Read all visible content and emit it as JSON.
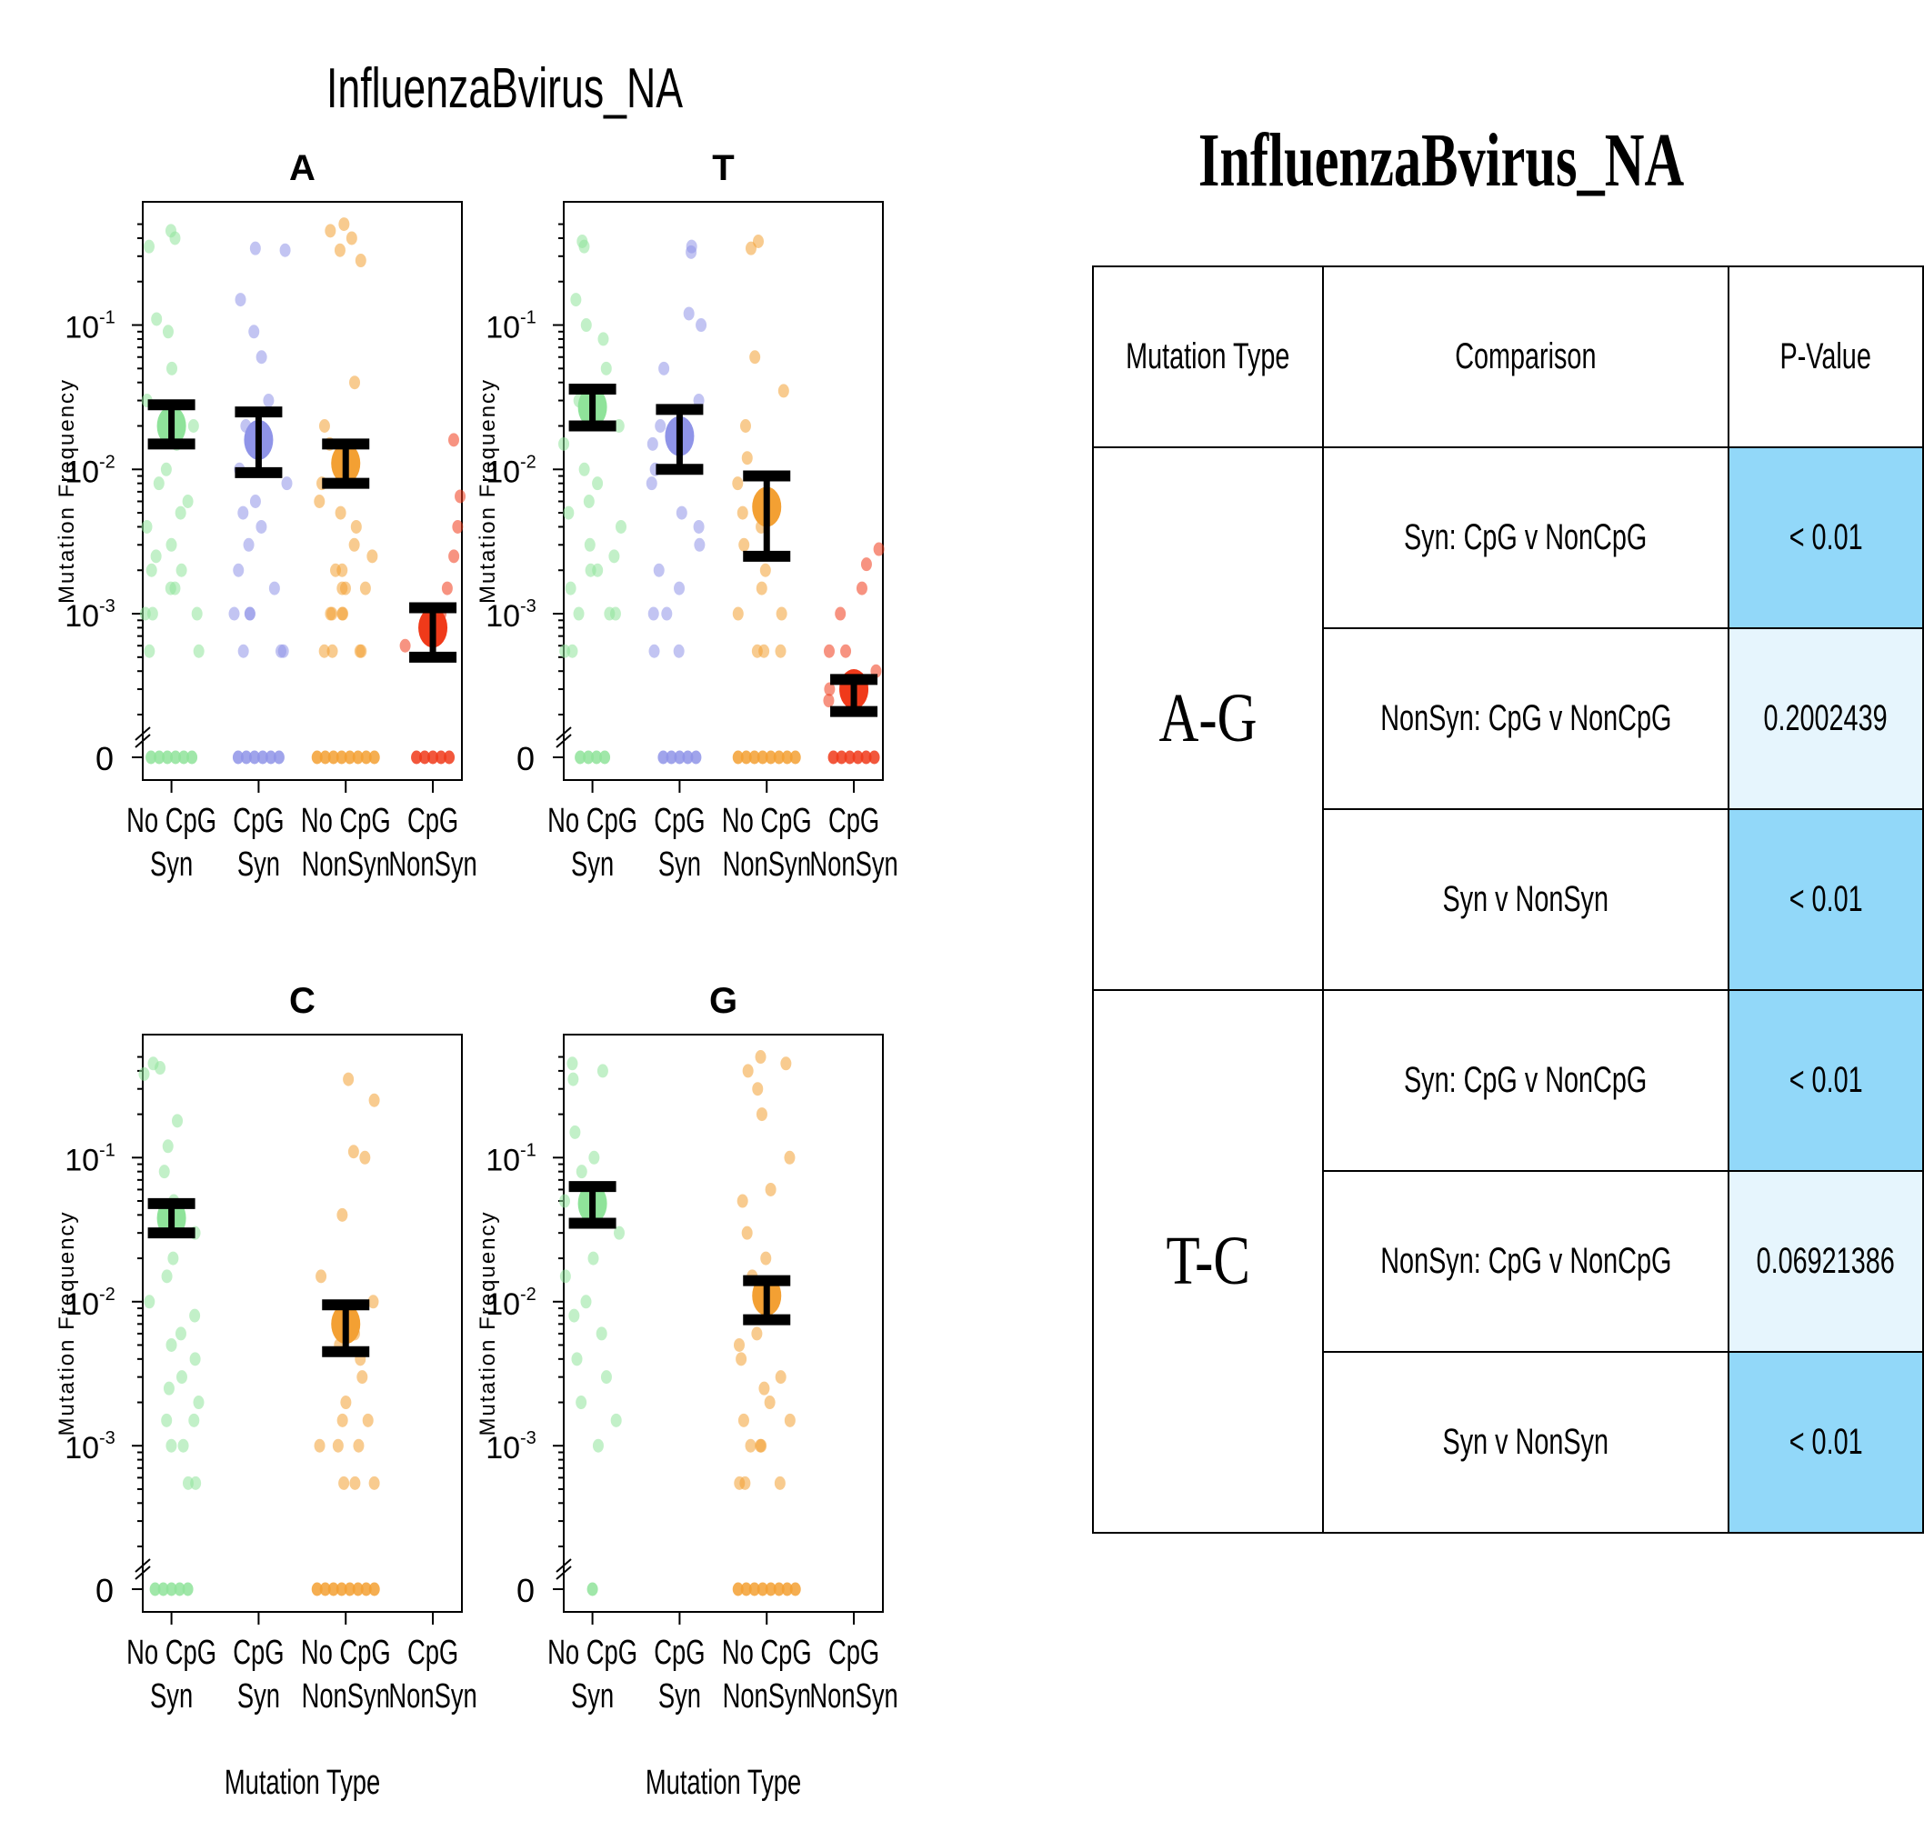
{
  "figure_title": "InfluenzaBvirus_NA",
  "table": {
    "title": "InfluenzaBvirus_NA",
    "headers": [
      "Mutation Type",
      "Comparison",
      "P-Value"
    ],
    "groups": [
      {
        "mutation_type": "A-G",
        "rows": [
          {
            "comparison": "Syn: CpG v NonCpG",
            "p_value": "< 0.01",
            "significant": true
          },
          {
            "comparison": "NonSyn: CpG v NonCpG",
            "p_value": "0.2002439",
            "significant": false
          },
          {
            "comparison": "Syn v NonSyn",
            "p_value": "< 0.01",
            "significant": true
          }
        ]
      },
      {
        "mutation_type": "T-C",
        "rows": [
          {
            "comparison": "Syn: CpG v NonCpG",
            "p_value": "< 0.01",
            "significant": true
          },
          {
            "comparison": "NonSyn: CpG v NonCpG",
            "p_value": "0.06921386",
            "significant": false
          },
          {
            "comparison": "Syn v NonSyn",
            "p_value": "< 0.01",
            "significant": true
          }
        ]
      }
    ],
    "colors": {
      "significant": "#92d8f9",
      "not_significant": "#e6f5fd"
    }
  },
  "chart_data": [
    {
      "type": "scatter",
      "title": "A",
      "ylabel": "Mutation Frequency",
      "xlabel": "",
      "y_scale": "log",
      "ylim": [
        0.0002,
        0.6
      ],
      "zero_tick": "0",
      "y_ticks": [
        "10^-3",
        "10^-2",
        "10^-1"
      ],
      "categories": [
        "No CpG\nSyn",
        "CpG\nSyn",
        "No CpG\nNonSyn",
        "CpG\nNonSyn"
      ],
      "series": [
        {
          "mean": 0.02,
          "ci": [
            0.015,
            0.028
          ],
          "points": [
            0.45,
            0.4,
            0.35,
            0.11,
            0.09,
            0.05,
            0.03,
            0.02,
            0.015,
            0.01,
            0.008,
            0.006,
            0.005,
            0.004,
            0.003,
            0.0025,
            0.002,
            0.002,
            0.0015,
            0.0015,
            0.001,
            0.001,
            0.001,
            0.00055,
            0.00055
          ],
          "zeros": 6
        },
        {
          "mean": 0.016,
          "ci": [
            0.0095,
            0.025
          ],
          "points": [
            0.34,
            0.33,
            0.15,
            0.09,
            0.06,
            0.03,
            0.02,
            0.01,
            0.008,
            0.006,
            0.005,
            0.004,
            0.003,
            0.002,
            0.0015,
            0.001,
            0.001,
            0.001,
            0.00055,
            0.00055,
            0.00055
          ],
          "zeros": 6
        },
        {
          "mean": 0.011,
          "ci": [
            0.008,
            0.015
          ],
          "points": [
            0.5,
            0.45,
            0.4,
            0.33,
            0.28,
            0.04,
            0.02,
            0.015,
            0.01,
            0.008,
            0.006,
            0.005,
            0.004,
            0.003,
            0.0025,
            0.002,
            0.002,
            0.0015,
            0.0015,
            0.0015,
            0.001,
            0.001,
            0.001,
            0.001,
            0.00055,
            0.00055,
            0.00055,
            0.00055
          ],
          "zeros": 8
        },
        {
          "mean": 0.0008,
          "ci": [
            0.0005,
            0.0011
          ],
          "points": [
            0.016,
            0.0065,
            0.004,
            0.0025,
            0.0015,
            0.001,
            0.0008,
            0.0006
          ],
          "zeros": 5
        }
      ],
      "colors": [
        "#8fe39a",
        "#8f94e8",
        "#f3a033",
        "#f03a1a"
      ]
    },
    {
      "type": "scatter",
      "title": "T",
      "ylabel": "Mutation Frequency",
      "xlabel": "",
      "y_scale": "log",
      "ylim": [
        0.0002,
        0.6
      ],
      "zero_tick": "0",
      "y_ticks": [
        "10^-3",
        "10^-2",
        "10^-1"
      ],
      "categories": [
        "No CpG\nSyn",
        "CpG\nSyn",
        "No CpG\nNonSyn",
        "CpG\nNonSyn"
      ],
      "series": [
        {
          "mean": 0.027,
          "ci": [
            0.02,
            0.036
          ],
          "points": [
            0.38,
            0.35,
            0.15,
            0.1,
            0.08,
            0.05,
            0.03,
            0.02,
            0.015,
            0.01,
            0.008,
            0.006,
            0.005,
            0.004,
            0.003,
            0.0025,
            0.002,
            0.002,
            0.0015,
            0.001,
            0.001,
            0.001,
            0.00055,
            0.00055
          ],
          "zeros": 4
        },
        {
          "mean": 0.017,
          "ci": [
            0.01,
            0.026
          ],
          "points": [
            0.35,
            0.32,
            0.12,
            0.1,
            0.05,
            0.03,
            0.02,
            0.015,
            0.01,
            0.008,
            0.005,
            0.004,
            0.003,
            0.002,
            0.0015,
            0.001,
            0.001,
            0.00055,
            0.00055
          ],
          "zeros": 5
        },
        {
          "mean": 0.0055,
          "ci": [
            0.0025,
            0.009
          ],
          "points": [
            0.38,
            0.34,
            0.06,
            0.035,
            0.02,
            0.012,
            0.008,
            0.006,
            0.005,
            0.004,
            0.003,
            0.002,
            0.0015,
            0.001,
            0.001,
            0.00055,
            0.00055,
            0.00055
          ],
          "zeros": 8
        },
        {
          "mean": 0.0003,
          "ci": [
            0.00021,
            0.00035
          ],
          "points": [
            0.0028,
            0.0022,
            0.0015,
            0.001,
            0.00055,
            0.00055,
            0.0004,
            0.0003,
            0.00025
          ],
          "zeros": 6
        }
      ],
      "colors": [
        "#8fe39a",
        "#8f94e8",
        "#f3a033",
        "#f03a1a"
      ]
    },
    {
      "type": "scatter",
      "title": "C",
      "ylabel": "Mutation Frequency",
      "xlabel": "Mutation Type",
      "y_scale": "log",
      "ylim": [
        0.0002,
        0.6
      ],
      "zero_tick": "0",
      "y_ticks": [
        "10^-3",
        "10^-2",
        "10^-1"
      ],
      "categories": [
        "No CpG\nSyn",
        "CpG\nSyn",
        "No CpG\nNonSyn",
        "CpG\nNonSyn"
      ],
      "series": [
        {
          "mean": 0.038,
          "ci": [
            0.03,
            0.048
          ],
          "points": [
            0.45,
            0.42,
            0.38,
            0.18,
            0.12,
            0.08,
            0.05,
            0.03,
            0.02,
            0.015,
            0.01,
            0.008,
            0.006,
            0.005,
            0.004,
            0.003,
            0.0025,
            0.002,
            0.0015,
            0.0015,
            0.001,
            0.001,
            0.00055,
            0.00055
          ],
          "zeros": 5
        },
        {
          "mean": null,
          "ci": null,
          "points": [],
          "zeros": 0
        },
        {
          "mean": 0.007,
          "ci": [
            0.0045,
            0.0095
          ],
          "points": [
            0.35,
            0.25,
            0.11,
            0.1,
            0.04,
            0.015,
            0.01,
            0.008,
            0.006,
            0.005,
            0.004,
            0.003,
            0.002,
            0.0015,
            0.0015,
            0.001,
            0.001,
            0.001,
            0.00055,
            0.00055,
            0.00055
          ],
          "zeros": 8
        },
        {
          "mean": null,
          "ci": null,
          "points": [],
          "zeros": 0
        }
      ],
      "colors": [
        "#8fe39a",
        "#8f94e8",
        "#f3a033",
        "#f03a1a"
      ]
    },
    {
      "type": "scatter",
      "title": "G",
      "ylabel": "Mutation Frequency",
      "xlabel": "Mutation Type",
      "y_scale": "log",
      "ylim": [
        0.0002,
        0.6
      ],
      "zero_tick": "0",
      "y_ticks": [
        "10^-3",
        "10^-2",
        "10^-1"
      ],
      "categories": [
        "No CpG\nSyn",
        "CpG\nSyn",
        "No CpG\nNonSyn",
        "CpG\nNonSyn"
      ],
      "series": [
        {
          "mean": 0.048,
          "ci": [
            0.035,
            0.063
          ],
          "points": [
            0.45,
            0.4,
            0.35,
            0.15,
            0.1,
            0.08,
            0.05,
            0.03,
            0.02,
            0.015,
            0.01,
            0.008,
            0.006,
            0.004,
            0.003,
            0.002,
            0.0015,
            0.001
          ],
          "zeros": 1
        },
        {
          "mean": null,
          "ci": null,
          "points": [],
          "zeros": 0
        },
        {
          "mean": 0.011,
          "ci": [
            0.0075,
            0.014
          ],
          "points": [
            0.5,
            0.45,
            0.4,
            0.3,
            0.2,
            0.1,
            0.06,
            0.05,
            0.03,
            0.02,
            0.015,
            0.01,
            0.008,
            0.006,
            0.005,
            0.004,
            0.003,
            0.0025,
            0.002,
            0.0015,
            0.0015,
            0.001,
            0.001,
            0.001,
            0.00055,
            0.00055,
            0.00055
          ],
          "zeros": 8
        },
        {
          "mean": null,
          "ci": null,
          "points": [],
          "zeros": 0
        }
      ],
      "colors": [
        "#8fe39a",
        "#8f94e8",
        "#f3a033",
        "#f03a1a"
      ]
    }
  ]
}
